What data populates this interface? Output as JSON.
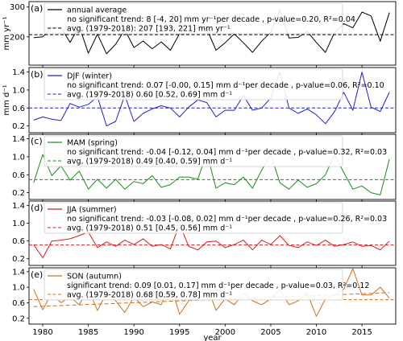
{
  "chart_data": [
    {
      "type": "line",
      "panel_label": "(a)",
      "ylabel": "mm yr⁻¹",
      "yticks": [
        {
          "v": 100,
          "t": "100"
        },
        {
          "v": 200,
          "t": "200"
        },
        {
          "v": 300,
          "t": "300"
        }
      ],
      "ylim": [
        105,
        318
      ],
      "color": "#000000",
      "legend": {
        "series_name": "annual average",
        "trend_text": "no significant trend: 8 [-4, 20] mm yr⁻¹per decade   , p-value=0.20, R²=0.04",
        "avg_text": "avg. (1979-2018): 207 [193, 221] mm yr⁻¹"
      },
      "avg": 207,
      "trend": null,
      "x": [
        1979,
        1980,
        1981,
        1982,
        1983,
        1984,
        1985,
        1986,
        1987,
        1988,
        1989,
        1990,
        1991,
        1992,
        1993,
        1994,
        1995,
        1996,
        1997,
        1998,
        1999,
        2000,
        2001,
        2002,
        2003,
        2004,
        2005,
        2006,
        2007,
        2008,
        2009,
        2010,
        2011,
        2012,
        2013,
        2014,
        2015,
        2016,
        2017,
        2018
      ],
      "values": [
        197,
        200,
        232,
        232,
        181,
        236,
        145,
        209,
        143,
        175,
        224,
        164,
        186,
        160,
        183,
        155,
        211,
        211,
        230,
        226,
        155,
        180,
        210,
        180,
        148,
        185,
        215,
        290,
        196,
        198,
        218,
        181,
        148,
        215,
        244,
        230,
        283,
        270,
        185,
        281
      ]
    },
    {
      "type": "line",
      "panel_label": "(b)",
      "ylabel": "mm d⁻¹",
      "yticks": [
        {
          "v": 0.2,
          "t": "0.2"
        },
        {
          "v": 0.6,
          "t": "0.6"
        },
        {
          "v": 1.0,
          "t": "1.0"
        },
        {
          "v": 1.4,
          "t": "1.4"
        }
      ],
      "ylim": [
        0.05,
        1.5
      ],
      "color": "#1f1fcc",
      "legend": {
        "series_name": "DJF (winter)",
        "trend_text": "no significant trend: 0.07 [-0.00, 0.15] mm d⁻¹per decade   , p-value=0.06, R²=0.10",
        "avg_text": "avg. (1979-2018) 0.60 [0.52, 0.69] mm d⁻¹"
      },
      "avg": 0.6,
      "trend": null,
      "x": [
        1979,
        1980,
        1981,
        1982,
        1983,
        1984,
        1985,
        1986,
        1987,
        1988,
        1989,
        1990,
        1991,
        1992,
        1993,
        1994,
        1995,
        1996,
        1997,
        1998,
        1999,
        2000,
        2001,
        2002,
        2003,
        2004,
        2005,
        2006,
        2007,
        2008,
        2009,
        2010,
        2011,
        2012,
        2013,
        2014,
        2015,
        2016,
        2017,
        2018
      ],
      "values": [
        0.33,
        0.4,
        0.35,
        0.32,
        0.7,
        0.62,
        0.68,
        0.85,
        0.2,
        0.3,
        0.88,
        0.3,
        0.48,
        0.58,
        0.65,
        0.6,
        0.4,
        0.62,
        0.78,
        0.72,
        0.4,
        0.55,
        0.55,
        0.88,
        0.55,
        0.6,
        0.82,
        1.4,
        0.6,
        0.48,
        0.58,
        0.45,
        0.25,
        0.52,
        0.95,
        0.55,
        1.4,
        0.62,
        0.52,
        0.95
      ]
    },
    {
      "type": "line",
      "panel_label": "(c)",
      "ylabel": "",
      "yticks": [
        {
          "v": 0.2,
          "t": "0.2"
        },
        {
          "v": 0.6,
          "t": "0.6"
        },
        {
          "v": 1.0,
          "t": "1.0"
        },
        {
          "v": 1.4,
          "t": "1.4"
        }
      ],
      "ylim": [
        0.05,
        1.5
      ],
      "color": "#1a8c1a",
      "legend": {
        "series_name": "MAM (spring)",
        "trend_text": "no significant trend: -0.04 [-0.12, 0.04] mm d⁻¹per decade   , p-value=0.32, R²=0.03",
        "avg_text": "avg. (1979-2018) 0.49 [0.40, 0.59] mm d⁻¹"
      },
      "avg": 0.49,
      "trend": null,
      "x": [
        1979,
        1980,
        1981,
        1982,
        1983,
        1984,
        1985,
        1986,
        1987,
        1988,
        1989,
        1990,
        1991,
        1992,
        1993,
        1994,
        1995,
        1996,
        1997,
        1998,
        1999,
        2000,
        2001,
        2002,
        2003,
        2004,
        2005,
        2006,
        2007,
        2008,
        2009,
        2010,
        2011,
        2012,
        2013,
        2014,
        2015,
        2016,
        2017,
        2018
      ],
      "values": [
        0.42,
        1.05,
        0.58,
        0.8,
        0.48,
        0.68,
        0.28,
        0.5,
        0.3,
        0.5,
        0.28,
        0.45,
        0.4,
        0.58,
        0.32,
        0.38,
        0.55,
        0.55,
        0.5,
        1.08,
        0.3,
        0.42,
        0.38,
        0.55,
        0.3,
        0.7,
        1.05,
        0.42,
        0.28,
        0.48,
        0.32,
        0.4,
        0.6,
        1.05,
        0.65,
        0.28,
        0.35,
        0.2,
        0.15,
        0.95
      ]
    },
    {
      "type": "line",
      "panel_label": "(d)",
      "ylabel": "",
      "yticks": [
        {
          "v": 0.2,
          "t": "0.2"
        },
        {
          "v": 0.6,
          "t": "0.6"
        },
        {
          "v": 1.0,
          "t": "1.0"
        },
        {
          "v": 1.4,
          "t": "1.4"
        }
      ],
      "ylim": [
        0.05,
        1.5
      ],
      "color": "#e01818",
      "legend": {
        "series_name": "JJA (summer)",
        "trend_text": "no significant trend: -0.03 [-0.08, 0.02] mm d⁻¹per decade   , p-value=0.26, R²=0.03",
        "avg_text": "avg. (1979-2018) 0.51 [0.45, 0.56] mm d⁻¹"
      },
      "avg": 0.51,
      "trend": null,
      "x": [
        1979,
        1980,
        1981,
        1982,
        1983,
        1984,
        1985,
        1986,
        1987,
        1988,
        1989,
        1990,
        1991,
        1992,
        1993,
        1994,
        1995,
        1996,
        1997,
        1998,
        1999,
        2000,
        2001,
        2002,
        2003,
        2004,
        2005,
        2006,
        2007,
        2008,
        2009,
        2010,
        2011,
        2012,
        2013,
        2014,
        2015,
        2016,
        2017,
        2018
      ],
      "values": [
        0.52,
        0.22,
        0.6,
        0.62,
        0.65,
        0.72,
        0.8,
        0.45,
        0.58,
        0.48,
        0.62,
        0.52,
        0.65,
        0.48,
        0.52,
        0.42,
        0.98,
        0.48,
        0.4,
        0.58,
        0.6,
        0.45,
        0.52,
        0.62,
        0.4,
        0.62,
        0.52,
        0.72,
        0.5,
        0.45,
        0.58,
        0.5,
        0.62,
        0.48,
        0.52,
        0.58,
        0.48,
        0.5,
        0.4,
        0.6
      ]
    },
    {
      "type": "line",
      "panel_label": "(e)",
      "ylabel": "",
      "xlabel": "year",
      "yticks": [
        {
          "v": 0.2,
          "t": "0.2"
        },
        {
          "v": 0.6,
          "t": "0.6"
        },
        {
          "v": 1.0,
          "t": "1.0"
        },
        {
          "v": 1.4,
          "t": "1.4"
        }
      ],
      "ylim": [
        0.05,
        1.5
      ],
      "color": "#cc6f1f",
      "legend": {
        "series_name": "SON (autumn)",
        "trend_text": "significant trend: 0.09 [0.01, 0.17] mm d⁻¹per decade   , p-value=0.03, R²=0.12",
        "avg_text": "avg. (1979-2018) 0.68 [0.59, 0.78] mm d⁻¹"
      },
      "avg": 0.68,
      "trend": {
        "start": 0.5,
        "end": 0.86
      },
      "x": [
        1979,
        1980,
        1981,
        1982,
        1983,
        1984,
        1985,
        1986,
        1987,
        1988,
        1989,
        1990,
        1991,
        1992,
        1993,
        1994,
        1995,
        1996,
        1997,
        1998,
        1999,
        2000,
        2001,
        2002,
        2003,
        2004,
        2005,
        2006,
        2007,
        2008,
        2009,
        2010,
        2011,
        2012,
        2013,
        2014,
        2015,
        2016,
        2017,
        2018
      ],
      "values": [
        0.95,
        0.42,
        0.85,
        0.6,
        0.75,
        0.55,
        0.95,
        0.4,
        0.85,
        0.65,
        0.35,
        0.75,
        0.5,
        0.62,
        0.55,
        1.1,
        0.3,
        0.65,
        0.8,
        1.05,
        0.4,
        0.7,
        0.55,
        0.85,
        0.65,
        0.55,
        0.7,
        0.95,
        0.55,
        0.65,
        0.85,
        0.25,
        0.7,
        0.8,
        0.95,
        1.48,
        0.8,
        0.8,
        1.0,
        0.72
      ]
    }
  ],
  "x_axis": {
    "xlim": [
      1978.5,
      2018.7
    ],
    "ticks": [
      1980,
      1985,
      1990,
      1995,
      2000,
      2005,
      2010,
      2015
    ],
    "label": "year"
  }
}
